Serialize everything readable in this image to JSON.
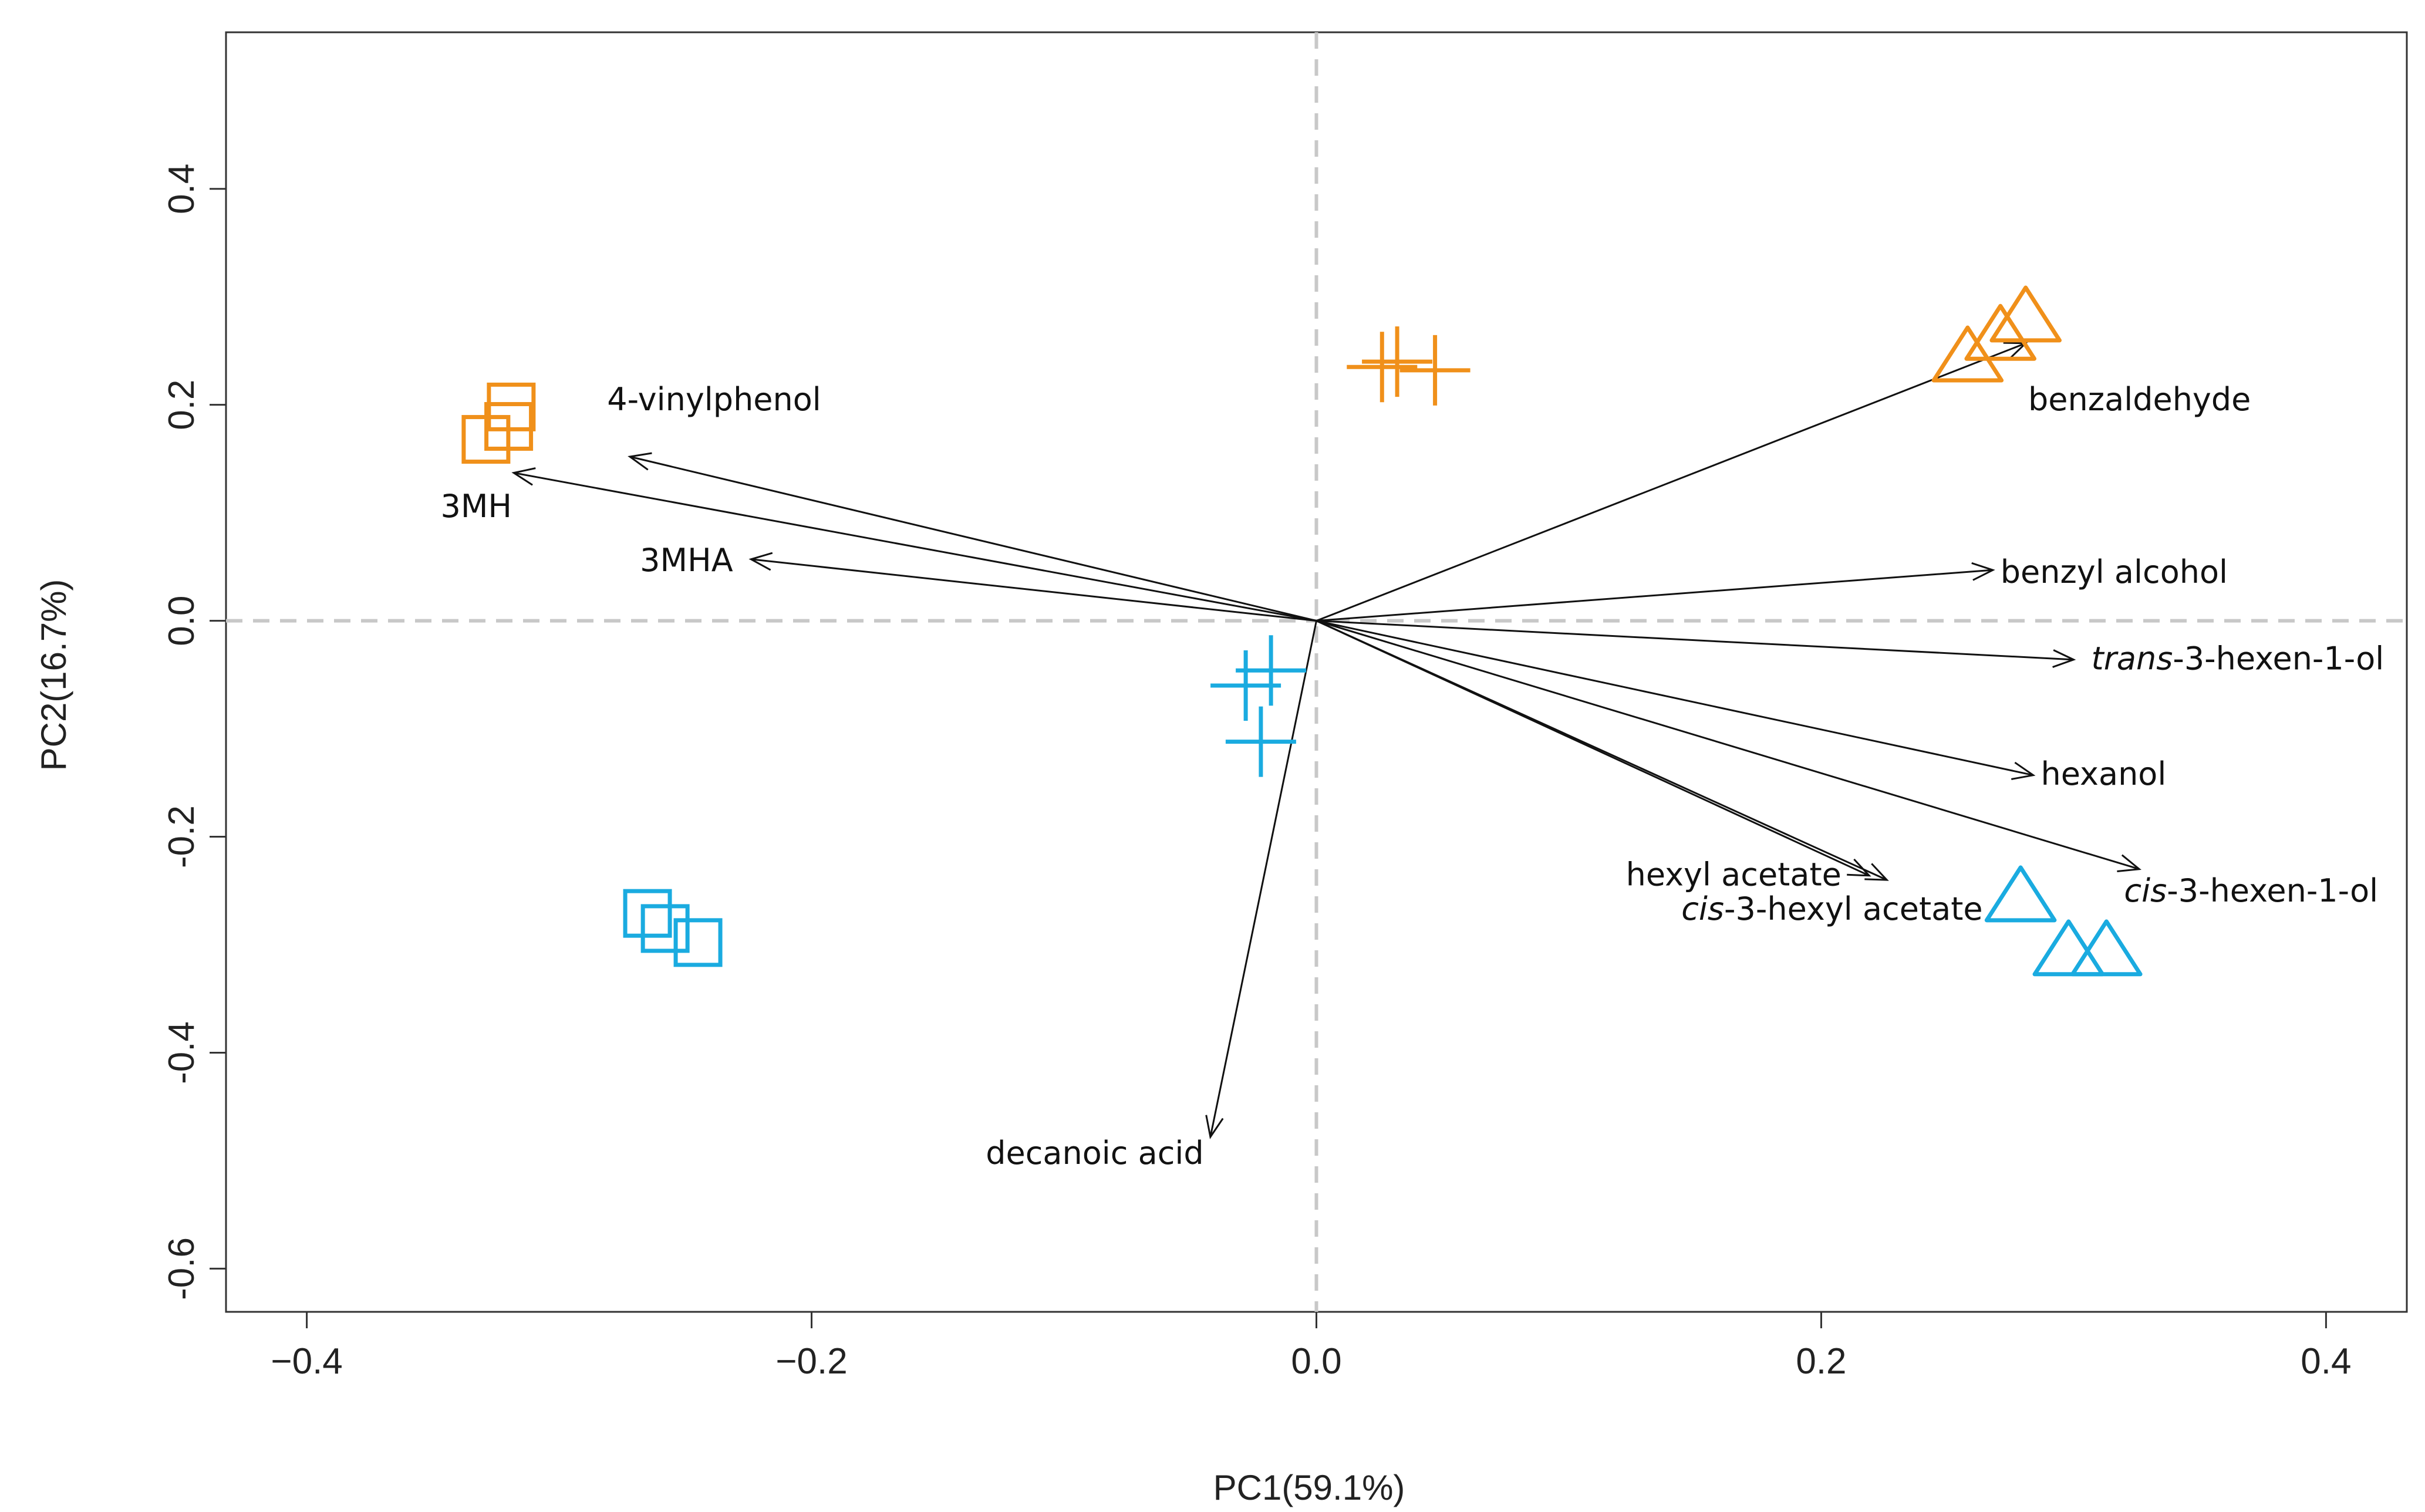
{
  "chart_data": {
    "type": "scatter",
    "title": "",
    "xlabel": "PC1(59.1%)",
    "ylabel": "PC2(16.7%)",
    "xlim": [
      -0.432,
      0.432
    ],
    "ylim": [
      -0.64,
      0.545
    ],
    "xticks": [
      {
        "value": -0.4,
        "label": "−0.4"
      },
      {
        "value": -0.2,
        "label": "−0.2"
      },
      {
        "value": 0.0,
        "label": "0.0"
      },
      {
        "value": 0.2,
        "label": "0.2"
      },
      {
        "value": 0.4,
        "label": "0.4"
      }
    ],
    "yticks": [
      {
        "value": -0.6,
        "label": "-0.6"
      },
      {
        "value": -0.4,
        "label": "-0.4"
      },
      {
        "value": -0.2,
        "label": "-0.2"
      },
      {
        "value": 0.0,
        "label": "0.0"
      },
      {
        "value": 0.2,
        "label": "0.2"
      },
      {
        "value": 0.4,
        "label": "0.4"
      }
    ],
    "grid": false,
    "reference_lines": {
      "x": 0,
      "y": 0,
      "style": "dashed"
    },
    "colors": {
      "orange": "#f0901a",
      "blue": "#1aabe0",
      "arrow": "#111111",
      "refline": "#c8c8c8",
      "frame": "#333333"
    },
    "point_series": [
      {
        "name": "orange-square",
        "marker": "square",
        "color": "#f0901a",
        "x": [
          -0.319,
          -0.32,
          -0.329
        ],
        "y": [
          0.198,
          0.18,
          0.168
        ]
      },
      {
        "name": "orange-plus",
        "marker": "plus",
        "color": "#f0901a",
        "x": [
          0.026,
          0.032,
          0.047
        ],
        "y": [
          0.235,
          0.24,
          0.232
        ]
      },
      {
        "name": "orange-triangle",
        "marker": "triangle",
        "color": "#f0901a",
        "x": [
          0.281,
          0.271,
          0.258
        ],
        "y": [
          0.277,
          0.26,
          0.24
        ]
      },
      {
        "name": "blue-square",
        "marker": "square",
        "color": "#1aabe0",
        "x": [
          -0.265,
          -0.258,
          -0.245
        ],
        "y": [
          -0.271,
          -0.285,
          -0.298
        ]
      },
      {
        "name": "blue-plus",
        "marker": "plus",
        "color": "#1aabe0",
        "x": [
          -0.018,
          -0.028,
          -0.022
        ],
        "y": [
          -0.046,
          -0.06,
          -0.112
        ]
      },
      {
        "name": "blue-triangle",
        "marker": "triangle",
        "color": "#1aabe0",
        "x": [
          0.279,
          0.298,
          0.313
        ],
        "y": [
          -0.26,
          -0.31,
          -0.31
        ]
      }
    ],
    "loadings": [
      {
        "name": "4-vinylphenol",
        "label": "4-vinylphenol",
        "italic": "",
        "rest": "4-vinylphenol",
        "x": -0.272,
        "y": 0.152,
        "label_x": -0.281,
        "label_y": 0.195,
        "anchor": "start"
      },
      {
        "name": "3MH",
        "label": "3MH",
        "italic": "",
        "rest": "3MH",
        "x": -0.318,
        "y": 0.137,
        "label_x": -0.347,
        "label_y": 0.096,
        "anchor": "start"
      },
      {
        "name": "3MHA",
        "label": "3MHA",
        "italic": "",
        "rest": "3MHA",
        "x": -0.224,
        "y": 0.057,
        "label_x": -0.268,
        "label_y": 0.046,
        "anchor": "start"
      },
      {
        "name": "benzaldehyde",
        "label": "benzaldehyde",
        "italic": "",
        "rest": "benzaldehyde",
        "x": 0.281,
        "y": 0.257,
        "label_x": 0.282,
        "label_y": 0.195,
        "anchor": "start"
      },
      {
        "name": "benzyl-alcohol",
        "label": "benzyl alcohol",
        "italic": "",
        "rest": "benzyl alcohol",
        "x": 0.268,
        "y": 0.047,
        "label_x": 0.271,
        "label_y": 0.035,
        "anchor": "start"
      },
      {
        "name": "trans-3-hexen-1-ol",
        "label": "trans-3-hexen-1-ol",
        "italic": "trans",
        "rest": "-3-hexen-1-ol",
        "x": 0.3,
        "y": -0.036,
        "label_x": 0.307,
        "label_y": -0.045,
        "anchor": "start"
      },
      {
        "name": "hexanol",
        "label": "hexanol",
        "italic": "",
        "rest": "hexanol",
        "x": 0.284,
        "y": -0.143,
        "label_x": 0.287,
        "label_y": -0.152,
        "anchor": "start"
      },
      {
        "name": "cis-3-hexen-1-ol",
        "label": "cis-3-hexen-1-ol",
        "italic": "cis",
        "rest": "-3-hexen-1-ol",
        "x": 0.326,
        "y": -0.23,
        "label_x": 0.32,
        "label_y": -0.26,
        "anchor": "start"
      },
      {
        "name": "hexyl-acetate",
        "label": "hexyl acetate",
        "italic": "",
        "rest": "hexyl acetate",
        "x": 0.219,
        "y": -0.236,
        "label_x": 0.208,
        "label_y": -0.245,
        "anchor": "end"
      },
      {
        "name": "cis-3-hexyl-acetate",
        "label": "cis-3-hexyl acetate",
        "italic": "cis",
        "rest": "-3-hexyl acetate",
        "x": 0.226,
        "y": -0.24,
        "label_x": 0.264,
        "label_y": -0.277,
        "anchor": "end"
      },
      {
        "name": "decanoic-acid",
        "label": "decanoic acid",
        "italic": "",
        "rest": "decanoic acid",
        "x": -0.042,
        "y": -0.478,
        "label_x": -0.131,
        "label_y": -0.503,
        "anchor": "start"
      }
    ]
  }
}
